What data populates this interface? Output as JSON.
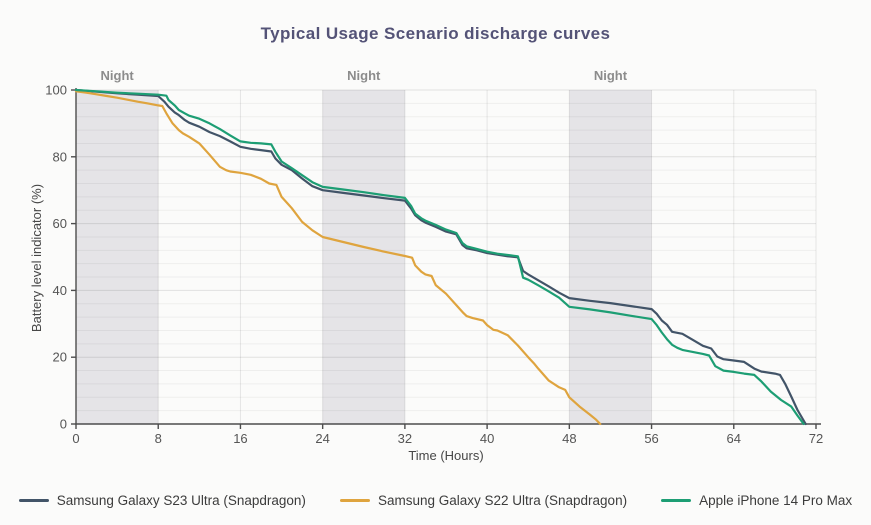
{
  "chart_data": {
    "type": "line",
    "title": "Typical Usage Scenario discharge curves",
    "xlabel": "Time (Hours)",
    "ylabel": "Battery level indicator (%)",
    "xlim": [
      0,
      72
    ],
    "ylim": [
      0,
      100
    ],
    "x_ticks": [
      0,
      8,
      16,
      24,
      32,
      40,
      48,
      56,
      64,
      72
    ],
    "y_ticks": [
      0,
      20,
      40,
      60,
      80,
      100
    ],
    "grid": "minor horizontal every 4%, major every 20%, vertical at each 8h tick",
    "legend_position": "bottom-center",
    "night_label": "Night",
    "night_bands": [
      {
        "start": 0,
        "end": 8
      },
      {
        "start": 24,
        "end": 32
      },
      {
        "start": 48,
        "end": 56
      }
    ],
    "colors": {
      "background": "#fbfbfa",
      "title": "#545377",
      "night_band": "#e5e4e7",
      "night_label": "#8c8c8c",
      "axis": "#4d4d4d",
      "tick_text": "#555555"
    },
    "series": [
      {
        "name": "Samsung Galaxy S23 Ultra (Snapdragon)",
        "color": "#425468",
        "points": [
          [
            0,
            100
          ],
          [
            2,
            99.5
          ],
          [
            4,
            99
          ],
          [
            6,
            98.6
          ],
          [
            8,
            98.2
          ],
          [
            8.6,
            96.5
          ],
          [
            9,
            95
          ],
          [
            9.6,
            93.3
          ],
          [
            10,
            92.5
          ],
          [
            10.6,
            91
          ],
          [
            11,
            90.2
          ],
          [
            12,
            89
          ],
          [
            13,
            87.4
          ],
          [
            14,
            86.2
          ],
          [
            15,
            84.6
          ],
          [
            16,
            83
          ],
          [
            17,
            82.4
          ],
          [
            18,
            82
          ],
          [
            19,
            81.6
          ],
          [
            19.4,
            79.5
          ],
          [
            20,
            77.6
          ],
          [
            21,
            76
          ],
          [
            22,
            73.5
          ],
          [
            23,
            71.2
          ],
          [
            24,
            70
          ],
          [
            26,
            69.2
          ],
          [
            28,
            68.4
          ],
          [
            30,
            67.6
          ],
          [
            32,
            66.9
          ],
          [
            32.6,
            64.5
          ],
          [
            33,
            62.5
          ],
          [
            33.6,
            61
          ],
          [
            34,
            60.3
          ],
          [
            35,
            59
          ],
          [
            36,
            57.6
          ],
          [
            37,
            56.8
          ],
          [
            37.6,
            53.6
          ],
          [
            38,
            52.6
          ],
          [
            39,
            52
          ],
          [
            40,
            51.2
          ],
          [
            41,
            50.7
          ],
          [
            42,
            50.2
          ],
          [
            43,
            49.9
          ],
          [
            43.5,
            45.8
          ],
          [
            44,
            44.8
          ],
          [
            45,
            43
          ],
          [
            46,
            41.2
          ],
          [
            47,
            39.3
          ],
          [
            48,
            37.7
          ],
          [
            50,
            36.9
          ],
          [
            52,
            36.2
          ],
          [
            54,
            35.3
          ],
          [
            56,
            34.4
          ],
          [
            56.5,
            33
          ],
          [
            57,
            31
          ],
          [
            57.5,
            29.7
          ],
          [
            58,
            27.6
          ],
          [
            59,
            27
          ],
          [
            60,
            25.2
          ],
          [
            61,
            23.4
          ],
          [
            61.8,
            22.6
          ],
          [
            62.4,
            20.2
          ],
          [
            63,
            19.4
          ],
          [
            64,
            19
          ],
          [
            65,
            18.6
          ],
          [
            66,
            16.6
          ],
          [
            66.7,
            15.7
          ],
          [
            68,
            15.1
          ],
          [
            68.5,
            14.7
          ],
          [
            69,
            12
          ],
          [
            69.6,
            8.2
          ],
          [
            70.2,
            4.2
          ],
          [
            71,
            0
          ]
        ]
      },
      {
        "name": "Samsung Galaxy S22 Ultra (Snapdragon)",
        "color": "#dfa43e",
        "points": [
          [
            0,
            99.6
          ],
          [
            1,
            99.2
          ],
          [
            2,
            98.7
          ],
          [
            3,
            98.2
          ],
          [
            4,
            97.7
          ],
          [
            5,
            97.1
          ],
          [
            6,
            96.5
          ],
          [
            7,
            96
          ],
          [
            8,
            95.4
          ],
          [
            8.4,
            95.2
          ],
          [
            8.8,
            93
          ],
          [
            9.4,
            90
          ],
          [
            10,
            88
          ],
          [
            10.4,
            87
          ],
          [
            11,
            86
          ],
          [
            12,
            84
          ],
          [
            13,
            80.6
          ],
          [
            14,
            77
          ],
          [
            14.6,
            76
          ],
          [
            15,
            75.6
          ],
          [
            16,
            75.2
          ],
          [
            17,
            74.6
          ],
          [
            18,
            73.4
          ],
          [
            18.8,
            72
          ],
          [
            19.5,
            71.6
          ],
          [
            20,
            68
          ],
          [
            20.6,
            66
          ],
          [
            21,
            64.6
          ],
          [
            22,
            60.5
          ],
          [
            23,
            58
          ],
          [
            24,
            56
          ],
          [
            26,
            54.5
          ],
          [
            28,
            53
          ],
          [
            30,
            51.6
          ],
          [
            32,
            50.3
          ],
          [
            32.7,
            49.8
          ],
          [
            33,
            47.5
          ],
          [
            33.6,
            45.6
          ],
          [
            34,
            44.8
          ],
          [
            34.6,
            44.3
          ],
          [
            35,
            41.6
          ],
          [
            36,
            39
          ],
          [
            37,
            35.6
          ],
          [
            37.7,
            33.2
          ],
          [
            38,
            32.3
          ],
          [
            38.6,
            31.7
          ],
          [
            39.6,
            31
          ],
          [
            40,
            29.6
          ],
          [
            40.6,
            28.2
          ],
          [
            41,
            28
          ],
          [
            42,
            26.6
          ],
          [
            43,
            23.5
          ],
          [
            44,
            20
          ],
          [
            44.6,
            18
          ],
          [
            45,
            16.5
          ],
          [
            46,
            13
          ],
          [
            47,
            11
          ],
          [
            47.6,
            10.2
          ],
          [
            48,
            8
          ],
          [
            49,
            5.2
          ],
          [
            50,
            2.8
          ],
          [
            50.6,
            1.3
          ],
          [
            51,
            0
          ]
        ]
      },
      {
        "name": "Apple iPhone 14 Pro Max",
        "color": "#1d9e74",
        "points": [
          [
            0,
            100
          ],
          [
            2,
            99.6
          ],
          [
            4,
            99.2
          ],
          [
            6,
            98.9
          ],
          [
            8,
            98.6
          ],
          [
            8.8,
            98.3
          ],
          [
            9,
            97
          ],
          [
            9.6,
            95.4
          ],
          [
            10,
            94
          ],
          [
            10.6,
            93
          ],
          [
            11,
            92.3
          ],
          [
            12,
            91.4
          ],
          [
            13,
            90
          ],
          [
            14,
            88.3
          ],
          [
            15,
            86.4
          ],
          [
            16,
            84.6
          ],
          [
            17,
            84.2
          ],
          [
            18,
            84
          ],
          [
            19,
            83.7
          ],
          [
            19.4,
            81.5
          ],
          [
            20,
            78.6
          ],
          [
            21,
            76.6
          ],
          [
            22,
            74.5
          ],
          [
            23,
            72.4
          ],
          [
            24,
            71
          ],
          [
            26,
            70.2
          ],
          [
            28,
            69.4
          ],
          [
            30,
            68.5
          ],
          [
            32,
            67.7
          ],
          [
            32.6,
            65.3
          ],
          [
            33,
            63
          ],
          [
            33.6,
            61.6
          ],
          [
            34,
            60.9
          ],
          [
            35,
            59.6
          ],
          [
            36,
            58.2
          ],
          [
            37,
            57.2
          ],
          [
            37.6,
            54.2
          ],
          [
            38,
            53.2
          ],
          [
            39,
            52.4
          ],
          [
            40,
            51.6
          ],
          [
            41,
            51
          ],
          [
            42,
            50.6
          ],
          [
            43,
            50.2
          ],
          [
            43.5,
            43.8
          ],
          [
            44,
            43.2
          ],
          [
            45,
            41.5
          ],
          [
            46,
            39.7
          ],
          [
            47,
            37.8
          ],
          [
            48,
            35.1
          ],
          [
            50,
            34.3
          ],
          [
            52,
            33.4
          ],
          [
            54,
            32.4
          ],
          [
            56,
            31.4
          ],
          [
            56.5,
            29.6
          ],
          [
            57,
            27.4
          ],
          [
            57.5,
            25.4
          ],
          [
            58,
            23.7
          ],
          [
            58.5,
            22.8
          ],
          [
            59,
            22.2
          ],
          [
            60,
            21.6
          ],
          [
            61,
            21
          ],
          [
            61.6,
            20.5
          ],
          [
            62.2,
            17.3
          ],
          [
            63,
            16
          ],
          [
            64,
            15.6
          ],
          [
            65,
            15.1
          ],
          [
            66,
            14.7
          ],
          [
            66.7,
            12.7
          ],
          [
            67.6,
            9.7
          ],
          [
            68.6,
            7.2
          ],
          [
            69.6,
            5.2
          ],
          [
            70.2,
            2.5
          ],
          [
            70.8,
            0
          ]
        ]
      }
    ]
  }
}
